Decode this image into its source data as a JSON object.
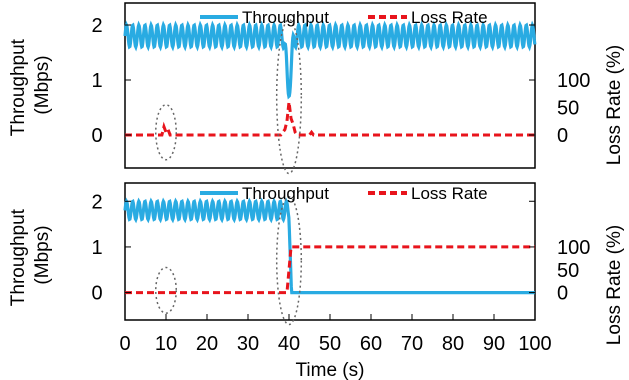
{
  "chart_data": [
    {
      "type": "line",
      "xlabel": "",
      "ylabel": "Throughput\n(Mbps)",
      "y2label": "Loss Rate (%)",
      "xlim": [
        0,
        100
      ],
      "ylim": [
        -0.6,
        2.4
      ],
      "y_ticks": [
        0,
        1,
        2
      ],
      "y2_ticks": [
        0,
        50,
        100
      ],
      "y2_tick_labels": [
        "0",
        "50",
        "100"
      ],
      "x_ticks": [],
      "legend": "top",
      "series": [
        {
          "name": "Throughput",
          "axis": "left",
          "color": "#29abe2",
          "style": "solid",
          "pattern": {
            "baseline": 1.8,
            "amplitude": 0.2,
            "period": 1.5,
            "dip_at": 40,
            "dip_min": 0.7,
            "dip_width": 1.4
          }
        },
        {
          "name": "Loss Rate",
          "axis": "right",
          "color": "#e8141c",
          "style": "dashed",
          "x": [
            0,
            9,
            9.5,
            10,
            10.5,
            11,
            38,
            39,
            39.5,
            40,
            40.5,
            41,
            41.5,
            42,
            45,
            45.5,
            46,
            100
          ],
          "values": [
            0,
            0,
            15,
            5,
            10,
            0,
            0,
            10,
            25,
            60,
            30,
            20,
            5,
            0,
            0,
            5,
            0,
            0
          ]
        }
      ],
      "annotations": [
        {
          "shape": "dotted-ellipse",
          "cx": 10,
          "cy": 0.05,
          "rx": 2.5,
          "ry": 0.5
        },
        {
          "shape": "dotted-ellipse",
          "cx": 40,
          "cy": 0.7,
          "rx": 3,
          "ry": 1.4
        }
      ]
    },
    {
      "type": "line",
      "xlabel": "Time (s)",
      "ylabel": "Throughput\n(Mbps)",
      "y2label": "Loss Rate (%)",
      "xlim": [
        0,
        100
      ],
      "ylim": [
        -0.6,
        2.4
      ],
      "y_ticks": [
        0,
        1,
        2
      ],
      "y2_ticks": [
        0,
        50,
        100
      ],
      "y2_tick_labels": [
        "0",
        "50",
        "100"
      ],
      "x_ticks": [
        0,
        10,
        20,
        30,
        40,
        50,
        60,
        70,
        80,
        90,
        100
      ],
      "x_tick_labels": [
        "0",
        "10",
        "20",
        "30",
        "40",
        "50",
        "60",
        "70",
        "80",
        "90",
        "100"
      ],
      "legend": "top",
      "series": [
        {
          "name": "Throughput",
          "axis": "left",
          "color": "#29abe2",
          "style": "solid",
          "pattern": {
            "baseline": 1.8,
            "amplitude": 0.2,
            "period": 1.5,
            "drop_at": 40,
            "after": 0
          }
        },
        {
          "name": "Loss Rate",
          "axis": "right",
          "color": "#e8141c",
          "style": "dashed",
          "x": [
            0,
            39.5,
            40,
            40.5,
            100
          ],
          "values": [
            0,
            0,
            50,
            100,
            100
          ]
        }
      ],
      "annotations": [
        {
          "shape": "dotted-ellipse",
          "cx": 10,
          "cy": 0.05,
          "rx": 2.5,
          "ry": 0.5
        },
        {
          "shape": "dotted-ellipse",
          "cx": 40,
          "cy": 0.7,
          "rx": 3,
          "ry": 1.4
        }
      ]
    }
  ]
}
